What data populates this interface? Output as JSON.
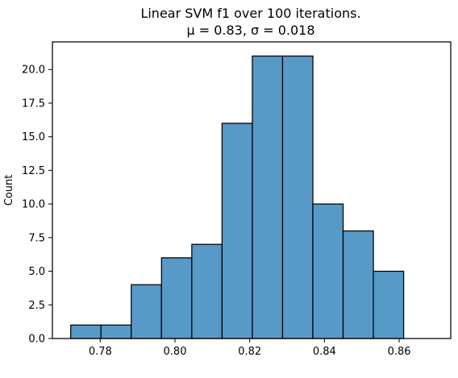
{
  "chart_data": {
    "type": "bar",
    "title_line1": "Linear SVM f1 over 100 iterations.",
    "title_line2": "μ = 0.83, σ = 0.018",
    "xlabel": "",
    "ylabel": "Count",
    "xlim": [
      0.7672,
      0.8738
    ],
    "ylim": [
      0,
      22.05
    ],
    "bin_edges": [
      0.7721,
      0.7802,
      0.7883,
      0.7964,
      0.8045,
      0.8126,
      0.8207,
      0.8288,
      0.8369,
      0.845,
      0.8531,
      0.8612,
      0.8693
    ],
    "categories": [
      "0.7721–0.7802",
      "0.7802–0.7883",
      "0.7883–0.7964",
      "0.7964–0.8045",
      "0.8045–0.8126",
      "0.8126–0.8207",
      "0.8207–0.8288",
      "0.8288–0.8369",
      "0.8369–0.8450",
      "0.8450–0.8531",
      "0.8531–0.8612",
      "0.8612–0.8693"
    ],
    "values": [
      1,
      1,
      4,
      6,
      7,
      16,
      21,
      21,
      10,
      8,
      5,
      0
    ],
    "xticks": [
      0.78,
      0.8,
      0.82,
      0.84,
      0.86
    ],
    "xtick_labels": [
      "0.78",
      "0.80",
      "0.82",
      "0.84",
      "0.86"
    ],
    "yticks": [
      0.0,
      2.5,
      5.0,
      7.5,
      10.0,
      12.5,
      15.0,
      17.5,
      20.0
    ],
    "ytick_labels": [
      "0.0",
      "2.5",
      "5.0",
      "7.5",
      "10.0",
      "12.5",
      "15.0",
      "17.5",
      "20.0"
    ],
    "grid": false,
    "legend": "none",
    "bar_color": "#5799c7",
    "edge_color": "#000000"
  }
}
